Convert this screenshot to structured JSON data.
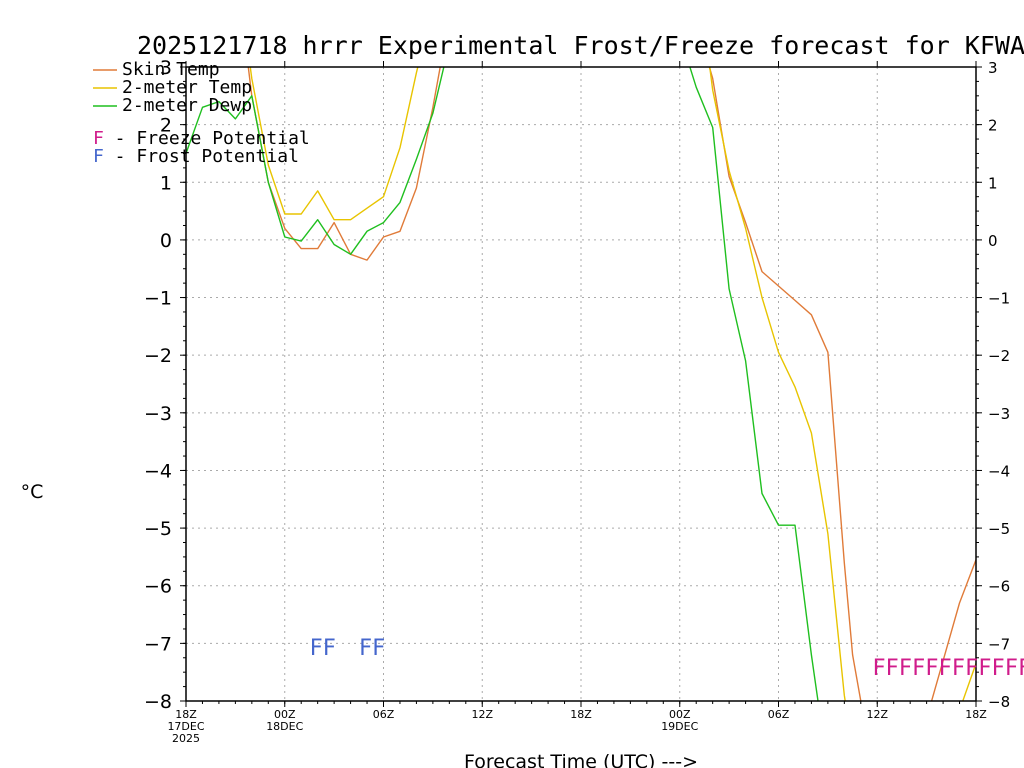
{
  "chart_data": {
    "type": "line",
    "title": "2025121718 hrrr Experimental Frost/Freeze forecast for KFWA",
    "xlabel": "Forecast Time (UTC) --->",
    "ylabel": "°C",
    "xlim": [
      0,
      48
    ],
    "ylim": [
      -8,
      3
    ],
    "yticks": [
      3,
      2,
      1,
      0,
      -1,
      -2,
      -3,
      -4,
      -5,
      -6,
      -7,
      -8
    ],
    "ytick_labels": [
      "3",
      "2",
      "1",
      "0",
      "−1",
      "−2",
      "−3",
      "−4",
      "−5",
      "−6",
      "−7",
      "−8"
    ],
    "xticks": [
      {
        "x": 0,
        "lines": [
          "18Z",
          "17DEC",
          "2025"
        ]
      },
      {
        "x": 6,
        "lines": [
          "00Z",
          "18DEC"
        ]
      },
      {
        "x": 12,
        "lines": [
          "06Z"
        ]
      },
      {
        "x": 18,
        "lines": [
          "12Z"
        ]
      },
      {
        "x": 24,
        "lines": [
          "18Z"
        ]
      },
      {
        "x": 30,
        "lines": [
          "00Z",
          "19DEC"
        ]
      },
      {
        "x": 36,
        "lines": [
          "06Z"
        ]
      },
      {
        "x": 42,
        "lines": [
          "12Z"
        ]
      },
      {
        "x": 48,
        "lines": [
          "18Z"
        ]
      }
    ],
    "legend": {
      "position": "top-left",
      "series": [
        {
          "name": "Skin Temp",
          "color": "#e07b39"
        },
        {
          "name": "2-meter Temp",
          "color": "#e8c400"
        },
        {
          "name": "2-meter Dewp",
          "color": "#1fbf1f"
        }
      ],
      "flags": [
        {
          "symbol": "F",
          "label": " - Freeze Potential",
          "color": "#d01c8b"
        },
        {
          "symbol": "F",
          "label": " - Frost Potential",
          "color": "#4466cc"
        }
      ]
    },
    "series": [
      {
        "name": "Skin Temp",
        "color": "#e07b39",
        "segments": [
          [
            [
              3.1,
              4.6
            ],
            [
              4,
              2.5
            ],
            [
              5,
              1.0
            ],
            [
              6,
              0.2
            ],
            [
              7,
              -0.15
            ],
            [
              8,
              -0.15
            ],
            [
              9,
              0.3
            ],
            [
              10,
              -0.25
            ],
            [
              11,
              -0.35
            ],
            [
              12,
              0.05
            ],
            [
              13,
              0.15
            ],
            [
              14,
              0.9
            ],
            [
              15,
              2.3
            ],
            [
              15.7,
              3.4
            ]
          ],
          [
            [
              31.3,
              3.5
            ],
            [
              32,
              2.8
            ],
            [
              33,
              1.1
            ],
            [
              34,
              0.3
            ],
            [
              35,
              -0.55
            ],
            [
              36,
              -0.8
            ],
            [
              37,
              -1.05
            ],
            [
              38,
              -1.3
            ],
            [
              39,
              -1.95
            ],
            [
              40,
              -5.6
            ],
            [
              40.5,
              -7.2
            ],
            [
              41,
              -8.0
            ]
          ],
          [
            [
              45.3,
              -8.0
            ],
            [
              46,
              -7.3
            ],
            [
              47,
              -6.3
            ],
            [
              48,
              -5.55
            ]
          ]
        ]
      },
      {
        "name": "2-meter Temp",
        "color": "#e8c400",
        "segments": [
          [
            [
              3.2,
              4.5
            ],
            [
              4,
              2.8
            ],
            [
              5,
              1.3
            ],
            [
              6,
              0.45
            ],
            [
              7,
              0.45
            ],
            [
              8,
              0.85
            ],
            [
              9,
              0.35
            ],
            [
              10,
              0.35
            ],
            [
              11,
              0.55
            ],
            [
              12,
              0.75
            ],
            [
              13,
              1.6
            ],
            [
              14,
              2.9
            ],
            [
              14.6,
              3.6
            ]
          ],
          [
            [
              31.6,
              3.5
            ],
            [
              32,
              2.6
            ],
            [
              33,
              1.2
            ],
            [
              34,
              0.2
            ],
            [
              35,
              -1.0
            ],
            [
              36,
              -1.95
            ],
            [
              37,
              -2.55
            ],
            [
              38,
              -3.35
            ],
            [
              39,
              -5.1
            ],
            [
              40,
              -7.9
            ],
            [
              40.05,
              -8.0
            ]
          ],
          [
            [
              47.2,
              -8.0
            ],
            [
              48,
              -7.35
            ]
          ]
        ]
      },
      {
        "name": "2-meter Dewp",
        "color": "#1fbf1f",
        "segments": [
          [
            [
              0,
              1.5
            ],
            [
              1,
              2.3
            ],
            [
              2,
              2.4
            ],
            [
              3,
              2.1
            ],
            [
              4,
              2.5
            ],
            [
              5,
              1.0
            ],
            [
              6,
              0.05
            ],
            [
              7,
              -0.02
            ],
            [
              8,
              0.35
            ],
            [
              9,
              -0.08
            ],
            [
              10,
              -0.25
            ],
            [
              11,
              0.15
            ],
            [
              12,
              0.3
            ],
            [
              13,
              0.65
            ],
            [
              14,
              1.4
            ],
            [
              15,
              2.2
            ],
            [
              16,
              3.4
            ]
          ],
          [
            [
              30.4,
              3.2
            ],
            [
              31,
              2.65
            ],
            [
              32,
              1.95
            ],
            [
              33,
              -0.85
            ],
            [
              34,
              -2.1
            ],
            [
              35,
              -4.4
            ],
            [
              36,
              -4.95
            ],
            [
              37,
              -4.95
            ],
            [
              38,
              -7.2
            ],
            [
              38.4,
              -8.0
            ]
          ]
        ]
      }
    ],
    "flags": [
      {
        "label": "frost-flags-early-1",
        "text": "FF",
        "x": 7.5,
        "y": -7.2,
        "color": "#4466cc"
      },
      {
        "label": "frost-flags-early-2",
        "text": "FF",
        "x": 10.5,
        "y": -7.2,
        "color": "#4466cc"
      },
      {
        "label": "freeze-flags-late",
        "text": "FFFFFFFFFFFFFFF",
        "x": 41.7,
        "y": -7.55,
        "color": "#d01c8b"
      }
    ]
  }
}
